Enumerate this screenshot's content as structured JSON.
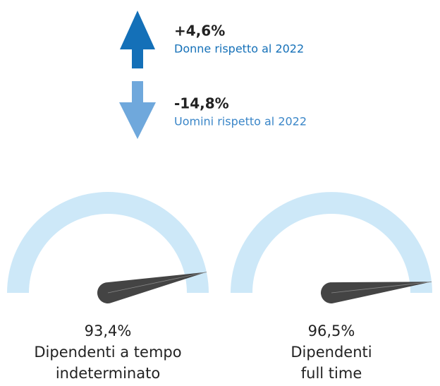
{
  "indicators": [
    {
      "value": "+4,6%",
      "label": "Donne rispetto al 2022",
      "direction": "up",
      "color": "#1470b8"
    },
    {
      "value": "-14,8%",
      "label": "Uomini rispetto al 2022",
      "direction": "down",
      "color": "#6fa8dc"
    }
  ],
  "gauges": [
    {
      "value": 93.4,
      "value_label": "93,4%",
      "range": [
        0,
        100
      ],
      "label": [
        "Dipendenti a tempo",
        "indeterminato"
      ]
    },
    {
      "value": 96.5,
      "value_label": "96,5%",
      "range": [
        0,
        100
      ],
      "label": [
        "Dipendenti",
        "full time"
      ]
    }
  ],
  "gauge_color": "#cde8f8",
  "needle_color": "#444444"
}
